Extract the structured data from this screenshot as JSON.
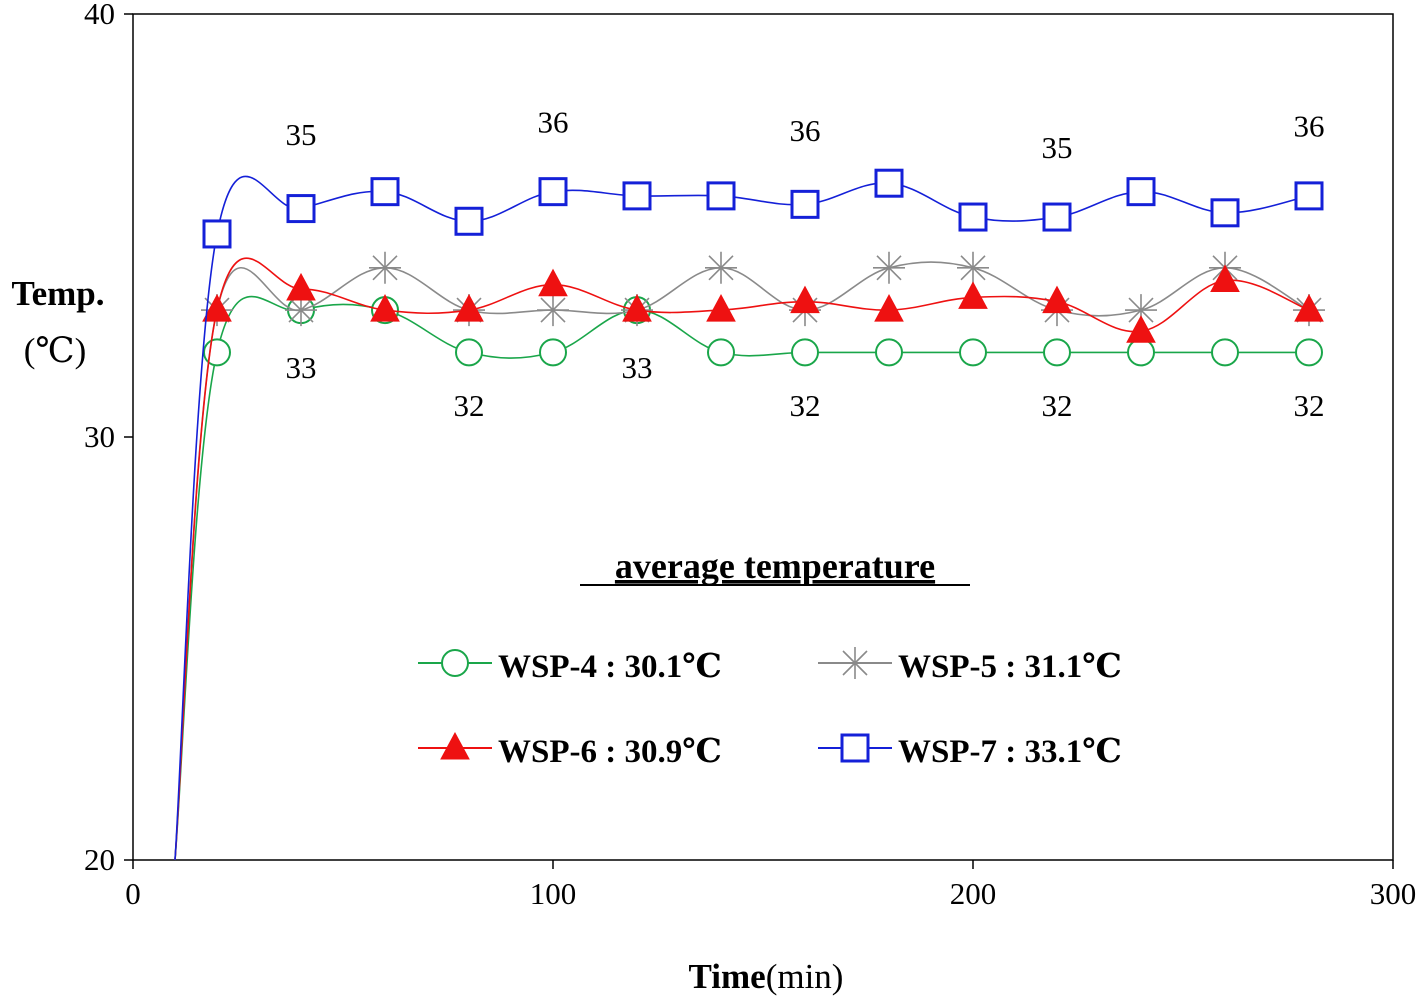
{
  "chart_data": {
    "type": "line",
    "title": "",
    "xlabel": "Time(min)",
    "xlabel_bold": "Time",
    "xlabel_unit": "(min)",
    "ylabel": "Temp.",
    "ylabel_unit": "(℃)",
    "xlim": [
      0,
      300
    ],
    "ylim": [
      20,
      40
    ],
    "x_ticks": [
      0,
      100,
      200,
      300
    ],
    "y_ticks": [
      20,
      30,
      40
    ],
    "grid": false,
    "legend_title": "average temperature",
    "legend_placement": "center",
    "x": [
      10,
      20,
      40,
      60,
      80,
      100,
      120,
      140,
      160,
      180,
      200,
      220,
      240,
      260,
      280
    ],
    "series": [
      {
        "name": "WSP-4 : 30.1℃",
        "color": "#1aa64a",
        "marker": "circle-open",
        "values": [
          20,
          32,
          33,
          33,
          32,
          32,
          33,
          32,
          32,
          32,
          32,
          32,
          32,
          32,
          32
        ]
      },
      {
        "name": "WSP-5 : 31.1℃",
        "color": "#8a8a8a",
        "marker": "asterisk",
        "values": [
          20,
          33,
          33,
          34,
          33,
          33,
          33,
          34,
          33,
          34,
          34,
          33,
          33,
          34,
          33
        ]
      },
      {
        "name": "WSP-6 : 30.9℃",
        "color": "#ee1111",
        "marker": "triangle-filled",
        "values": [
          20,
          33,
          33.5,
          33,
          33,
          33.6,
          33,
          33,
          33.2,
          33,
          33.3,
          33.2,
          32.5,
          33.7,
          33
        ]
      },
      {
        "name": "WSP-7 : 33.1℃",
        "color": "#1420d8",
        "marker": "square-open",
        "values": [
          20,
          34.8,
          35.4,
          35.8,
          35.1,
          35.8,
          35.7,
          35.7,
          35.5,
          36,
          35.2,
          35.2,
          35.8,
          35.3,
          35.7
        ]
      }
    ],
    "annotations": [
      {
        "text": "35",
        "x": 40,
        "y": 36.9
      },
      {
        "text": "36",
        "x": 100,
        "y": 37.2
      },
      {
        "text": "36",
        "x": 160,
        "y": 37.0
      },
      {
        "text": "35",
        "x": 220,
        "y": 36.6
      },
      {
        "text": "36",
        "x": 280,
        "y": 37.1
      },
      {
        "text": "33",
        "x": 40,
        "y": 31.4
      },
      {
        "text": "33",
        "x": 120,
        "y": 31.4
      },
      {
        "text": "32",
        "x": 80,
        "y": 30.5
      },
      {
        "text": "32",
        "x": 160,
        "y": 30.5
      },
      {
        "text": "32",
        "x": 220,
        "y": 30.5
      },
      {
        "text": "32",
        "x": 280,
        "y": 30.5
      }
    ]
  }
}
